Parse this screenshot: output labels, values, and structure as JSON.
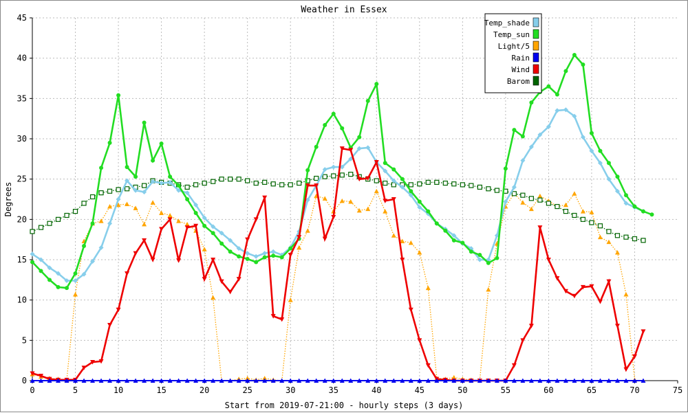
{
  "chart_data": {
    "type": "line",
    "title": "Weather in Essex",
    "xlabel": "Start from 2019-07-21:00 - hourly steps (3 days)",
    "ylabel": "Degrees",
    "xlim": [
      0,
      75
    ],
    "ylim": [
      0,
      45
    ],
    "x_ticks": [
      0,
      5,
      10,
      15,
      20,
      25,
      30,
      35,
      40,
      45,
      50,
      55,
      60,
      65,
      70,
      75
    ],
    "y_ticks": [
      0,
      5,
      10,
      15,
      20,
      25,
      30,
      35,
      40,
      45
    ],
    "grid": true,
    "legend_position": "top-right",
    "series": [
      {
        "name": "Temp_shade",
        "color": "#87ceeb",
        "marker": "diamond",
        "line": "solid",
        "values": [
          15.7,
          15.0,
          14.0,
          13.3,
          12.4,
          12.4,
          13.2,
          14.8,
          16.5,
          19.5,
          22.5,
          24.8,
          23.6,
          23.4,
          24.7,
          24.5,
          24.6,
          23.6,
          23.3,
          21.8,
          20.2,
          19.1,
          18.3,
          17.4,
          16.4,
          15.8,
          15.4,
          15.8,
          16.0,
          15.6,
          16.5,
          18.5,
          22.4,
          24.2,
          26.2,
          26.5,
          26.5,
          27.5,
          28.8,
          28.9,
          27.1,
          26.0,
          24.8,
          24.0,
          23.0,
          21.5,
          20.7,
          19.5,
          18.8,
          18.0,
          17.0,
          16.4,
          15.0,
          15.0,
          18.0,
          22.2,
          24.0,
          27.3,
          29.0,
          30.5,
          31.5,
          33.5,
          33.6,
          32.8,
          30.2,
          28.5,
          27.0,
          25.0,
          23.5,
          22.0,
          21.5,
          21.0
        ]
      },
      {
        "name": "Temp_sun",
        "color": "#22dd22",
        "marker": "circle",
        "line": "solid",
        "values": [
          14.7,
          13.6,
          12.5,
          11.6,
          11.5,
          13.3,
          16.7,
          19.5,
          26.4,
          29.5,
          35.4,
          26.5,
          25.3,
          32.0,
          27.3,
          29.4,
          25.3,
          24.2,
          22.5,
          20.8,
          19.2,
          18.3,
          17.0,
          16.0,
          15.4,
          15.1,
          14.7,
          15.3,
          15.5,
          15.3,
          16.4,
          17.6,
          26.1,
          29.0,
          31.7,
          33.1,
          31.3,
          28.9,
          30.2,
          34.7,
          36.8,
          27.0,
          26.2,
          25.0,
          23.5,
          22.2,
          21.0,
          19.5,
          18.6,
          17.4,
          17.1,
          16.0,
          15.6,
          14.6,
          15.2,
          26.3,
          31.1,
          30.3,
          34.5,
          35.8,
          36.5,
          35.5,
          38.4,
          40.4,
          39.2,
          30.7,
          28.5,
          27.0,
          25.3,
          23.0,
          21.6,
          21.0,
          20.6
        ]
      },
      {
        "name": "Light/5",
        "color": "#ffa500",
        "marker": "triangle-up",
        "line": "dotted",
        "values": [
          0.8,
          0.5,
          0.3,
          0.2,
          0.1,
          10.7,
          17.3,
          19.5,
          19.8,
          21.6,
          21.8,
          21.9,
          21.4,
          19.4,
          22.1,
          20.8,
          20.5,
          19.8,
          19.4,
          18.6,
          16.3,
          10.3,
          0,
          0,
          0.2,
          0.3,
          0.1,
          0.3,
          0.1,
          0,
          10.0,
          16.5,
          18.6,
          22.9,
          22.6,
          21.0,
          22.3,
          22.2,
          21.1,
          21.3,
          23.5,
          21.0,
          18.0,
          17.3,
          17.1,
          15.9,
          11.5,
          0.3,
          0.2,
          0.4,
          0.2,
          0.1,
          0,
          11.3,
          17.0,
          21.6,
          23.2,
          22.1,
          21.3,
          22.9,
          22.3,
          21.6,
          21.8,
          23.2,
          21.0,
          20.9,
          17.8,
          17.2,
          15.9,
          10.7,
          0.1
        ]
      },
      {
        "name": "Rain",
        "color": "#0000ee",
        "marker": "triangle-up",
        "line": "solid",
        "values": [
          0,
          0,
          0,
          0,
          0,
          0,
          0,
          0,
          0,
          0,
          0,
          0,
          0,
          0,
          0,
          0,
          0,
          0,
          0,
          0,
          0,
          0,
          0,
          0,
          0,
          0,
          0,
          0,
          0,
          0,
          0,
          0,
          0,
          0,
          0,
          0,
          0,
          0,
          0,
          0,
          0,
          0,
          0,
          0,
          0,
          0,
          0,
          0,
          0,
          0,
          0,
          0,
          0,
          0,
          0,
          0,
          0,
          0,
          0,
          0,
          0,
          0,
          0,
          0,
          0,
          0,
          0,
          0,
          0,
          0,
          0,
          0
        ]
      },
      {
        "name": "Wind",
        "color": "#ee0000",
        "marker": "triangle-down",
        "line": "solid",
        "values": [
          0.9,
          0.6,
          0.2,
          0.1,
          0.1,
          0.1,
          1.6,
          2.3,
          2.4,
          6.9,
          8.8,
          13.3,
          15.8,
          17.4,
          15.0,
          18.8,
          20.0,
          14.9,
          19.0,
          19.2,
          12.6,
          15.0,
          12.3,
          11.0,
          12.6,
          17.5,
          20.0,
          22.7,
          8.0,
          7.6,
          15.6,
          17.8,
          24.2,
          24.2,
          17.6,
          20.3,
          28.8,
          28.6,
          25.0,
          25.1,
          27.1,
          22.3,
          22.5,
          15.0,
          8.8,
          5.0,
          1.9,
          0.2,
          0.1,
          0,
          0,
          0,
          0,
          0,
          0,
          0,
          1.9,
          5.0,
          6.8,
          19.0,
          15.0,
          12.7,
          11.1,
          10.5,
          11.6,
          11.7,
          9.8,
          12.3,
          6.8,
          1.4,
          3.0,
          6.1
        ]
      },
      {
        "name": "Barom",
        "color": "#006400",
        "marker": "square",
        "line": "dotted",
        "values": [
          18.5,
          19.0,
          19.5,
          20.0,
          20.5,
          21.0,
          22.0,
          22.8,
          23.3,
          23.5,
          23.7,
          23.8,
          24.0,
          24.2,
          24.8,
          24.6,
          24.5,
          24.3,
          24.0,
          24.3,
          24.5,
          24.7,
          25.0,
          25.0,
          25.0,
          24.8,
          24.5,
          24.6,
          24.4,
          24.3,
          24.3,
          24.5,
          24.8,
          25.1,
          25.3,
          25.4,
          25.5,
          25.6,
          25.3,
          25.0,
          24.8,
          24.5,
          24.3,
          24.3,
          24.3,
          24.4,
          24.6,
          24.6,
          24.5,
          24.4,
          24.3,
          24.2,
          24.0,
          23.8,
          23.6,
          23.5,
          23.2,
          23.0,
          22.6,
          22.4,
          22.0,
          21.6,
          21.0,
          20.5,
          20.0,
          19.6,
          19.2,
          18.5,
          18.0,
          17.8,
          17.6,
          17.4
        ]
      }
    ]
  }
}
